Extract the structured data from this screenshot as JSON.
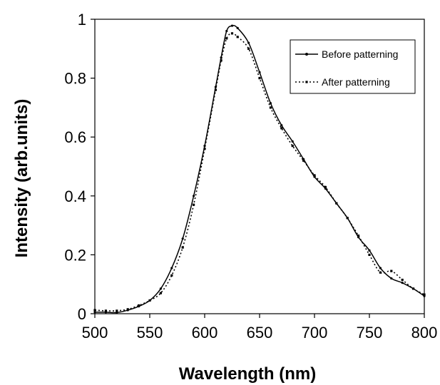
{
  "chart_data": {
    "type": "line",
    "title": "",
    "xlabel": "Wavelength (nm)",
    "ylabel": "Intensity (arb.units)",
    "xlim": [
      500,
      800
    ],
    "ylim": [
      0,
      1
    ],
    "x_ticks": [
      500,
      550,
      600,
      650,
      700,
      750,
      800
    ],
    "y_ticks": [
      0,
      0.2,
      0.4,
      0.6,
      0.8,
      1
    ],
    "x_tick_labels": [
      "500",
      "550",
      "600",
      "650",
      "700",
      "750",
      "800"
    ],
    "y_tick_labels": [
      "0",
      "0.2",
      "0.4",
      "0.6",
      "0.8",
      "1"
    ],
    "grid": false,
    "legend_position": "top-right",
    "series": [
      {
        "name": "Before patterning",
        "style": "solid",
        "color": "#000000",
        "points": [
          [
            500,
            0.005
          ],
          [
            510,
            0.005
          ],
          [
            520,
            0.004
          ],
          [
            530,
            0.012
          ],
          [
            540,
            0.025
          ],
          [
            550,
            0.045
          ],
          [
            560,
            0.085
          ],
          [
            570,
            0.155
          ],
          [
            580,
            0.255
          ],
          [
            590,
            0.4
          ],
          [
            600,
            0.57
          ],
          [
            610,
            0.77
          ],
          [
            615,
            0.87
          ],
          [
            620,
            0.96
          ],
          [
            625,
            0.978
          ],
          [
            630,
            0.97
          ],
          [
            640,
            0.92
          ],
          [
            650,
            0.82
          ],
          [
            660,
            0.715
          ],
          [
            670,
            0.64
          ],
          [
            680,
            0.585
          ],
          [
            690,
            0.525
          ],
          [
            700,
            0.465
          ],
          [
            710,
            0.425
          ],
          [
            720,
            0.375
          ],
          [
            730,
            0.325
          ],
          [
            740,
            0.26
          ],
          [
            750,
            0.215
          ],
          [
            760,
            0.155
          ],
          [
            770,
            0.12
          ],
          [
            780,
            0.105
          ],
          [
            790,
            0.085
          ],
          [
            800,
            0.06
          ]
        ]
      },
      {
        "name": "After patterning",
        "style": "dotted",
        "color": "#000000",
        "points": [
          [
            500,
            0.012
          ],
          [
            510,
            0.01
          ],
          [
            520,
            0.01
          ],
          [
            530,
            0.015
          ],
          [
            540,
            0.028
          ],
          [
            550,
            0.045
          ],
          [
            560,
            0.07
          ],
          [
            570,
            0.13
          ],
          [
            580,
            0.225
          ],
          [
            590,
            0.37
          ],
          [
            600,
            0.56
          ],
          [
            610,
            0.76
          ],
          [
            615,
            0.86
          ],
          [
            620,
            0.935
          ],
          [
            625,
            0.952
          ],
          [
            630,
            0.94
          ],
          [
            640,
            0.9
          ],
          [
            650,
            0.8
          ],
          [
            660,
            0.7
          ],
          [
            670,
            0.63
          ],
          [
            680,
            0.57
          ],
          [
            690,
            0.52
          ],
          [
            700,
            0.47
          ],
          [
            710,
            0.43
          ],
          [
            720,
            0.375
          ],
          [
            730,
            0.325
          ],
          [
            740,
            0.265
          ],
          [
            750,
            0.2
          ],
          [
            760,
            0.14
          ],
          [
            770,
            0.145
          ],
          [
            780,
            0.115
          ],
          [
            790,
            0.085
          ],
          [
            800,
            0.065
          ]
        ]
      }
    ]
  }
}
